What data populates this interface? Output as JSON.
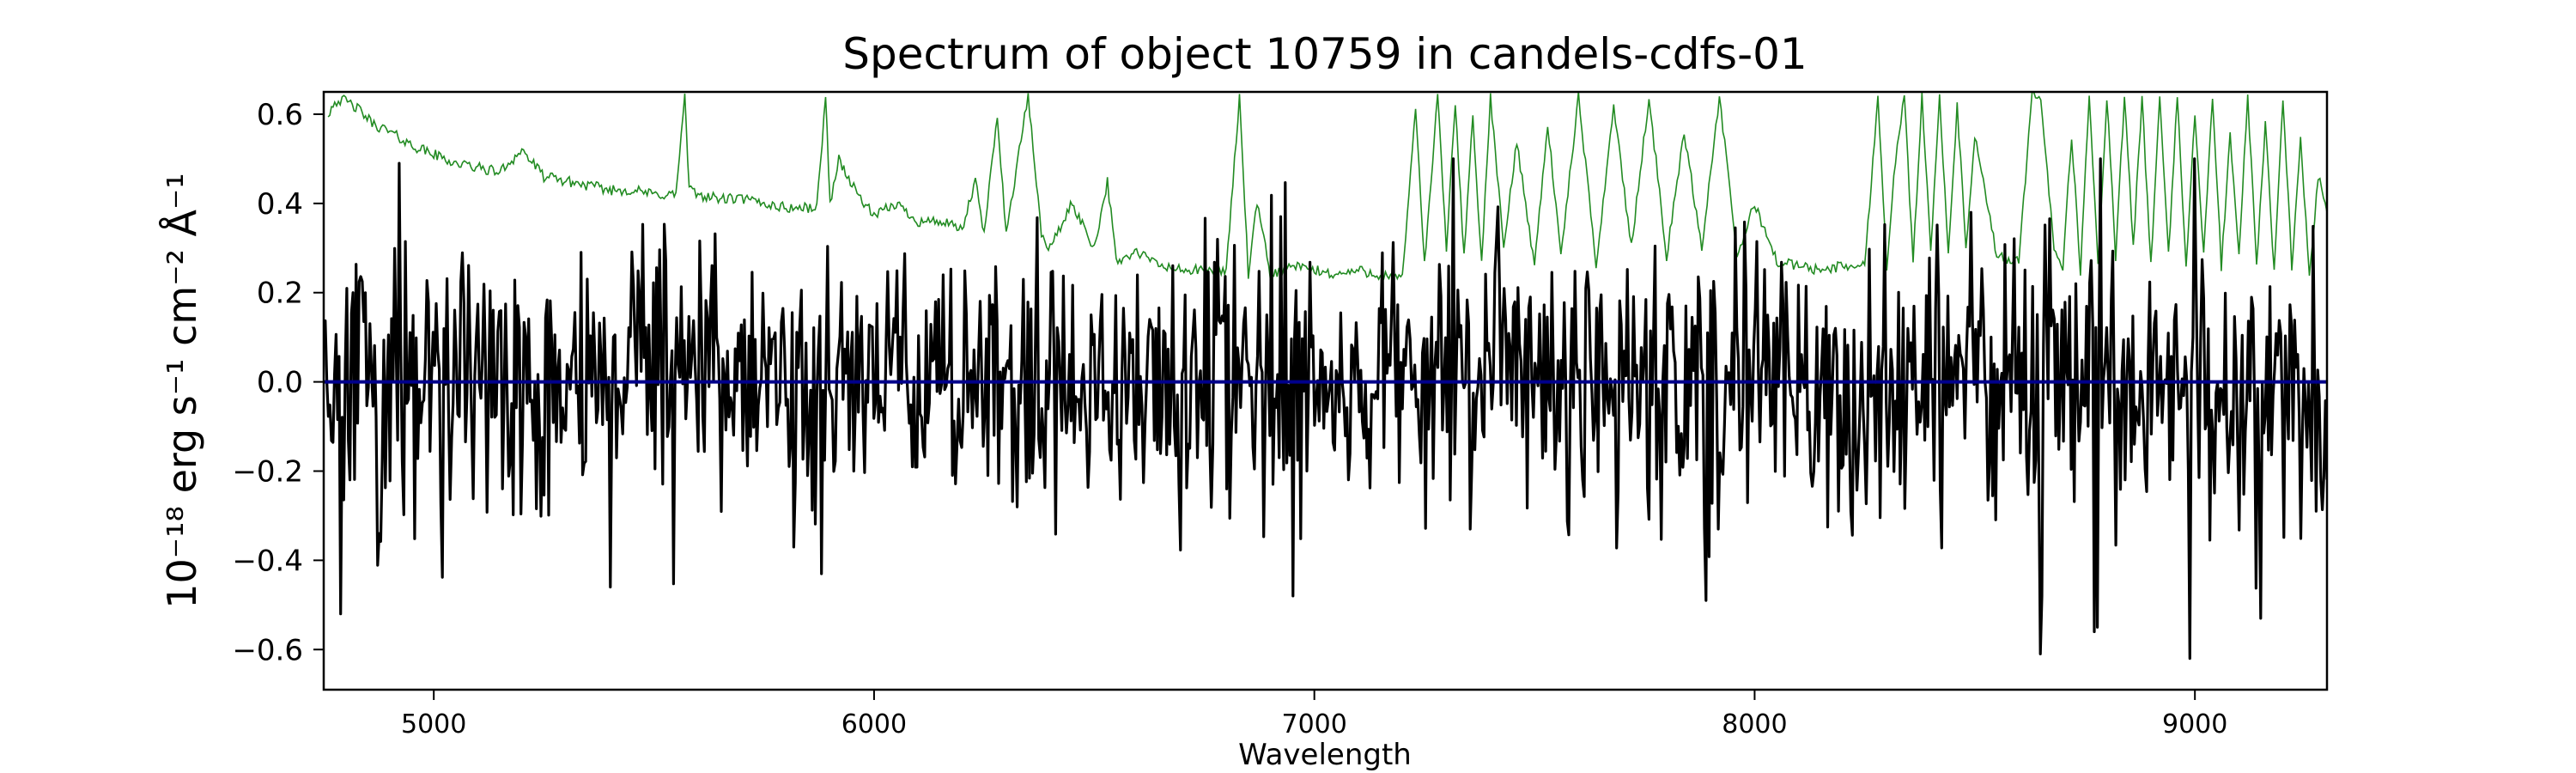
{
  "chart_data": {
    "type": "line",
    "title": "Spectrum of object 10759 in candels-cdfs-01",
    "xlabel": "Wavelength",
    "ylabel": "10⁻¹⁸ erg s⁻¹ cm⁻² Å⁻¹",
    "xlim": [
      4750,
      9300
    ],
    "ylim": [
      -0.69,
      0.65
    ],
    "xticks": [
      5000,
      6000,
      7000,
      8000,
      9000
    ],
    "yticks": [
      -0.6,
      -0.4,
      -0.2,
      0.0,
      0.2,
      0.4,
      0.6
    ],
    "ytick_labels": [
      "−0.6",
      "−0.4",
      "−0.2",
      "0.0",
      "0.2",
      "0.4",
      "0.6"
    ],
    "grid": false,
    "colors": {
      "flux": "#000000",
      "error": "#228b22",
      "zero": "#00008b"
    },
    "series": [
      {
        "key": "error",
        "x": [
          4760,
          4775,
          4800,
          4830,
          4860,
          4900,
          4950,
          5000,
          5050,
          5100,
          5150,
          5200,
          5250,
          5300,
          5350,
          5400,
          5450,
          5500,
          5550,
          5570,
          5580,
          5600,
          5650,
          5700,
          5750,
          5800,
          5870,
          5890,
          5900,
          5920,
          5950,
          6000,
          6050,
          6100,
          6150,
          6200,
          6230,
          6250,
          6280,
          6300,
          6330,
          6350,
          6380,
          6400,
          6450,
          6500,
          6530,
          6550,
          6600,
          6650,
          6700,
          6750,
          6800,
          6830,
          6850,
          6870,
          6900,
          6950,
          7000,
          7050,
          7100,
          7150,
          7200,
          7230,
          7250,
          7280,
          7300,
          7320,
          7340,
          7360,
          7380,
          7400,
          7430,
          7460,
          7500,
          7530,
          7560,
          7600,
          7640,
          7680,
          7720,
          7760,
          7800,
          7840,
          7880,
          7920,
          7960,
          8000,
          8050,
          8100,
          8150,
          8200,
          8250,
          8280,
          8300,
          8320,
          8340,
          8360,
          8380,
          8400,
          8420,
          8440,
          8460,
          8480,
          8500,
          8550,
          8600,
          8630,
          8650,
          8680,
          8700,
          8720,
          8740,
          8760,
          8780,
          8800,
          8820,
          8840,
          8860,
          8880,
          8900,
          8920,
          8940,
          8960,
          8980,
          9000,
          9020,
          9040,
          9060,
          9080,
          9100,
          9120,
          9140,
          9160,
          9180,
          9200,
          9220,
          9240,
          9260,
          9280,
          9300
        ],
        "values": [
          0.6,
          0.63,
          0.63,
          0.61,
          0.58,
          0.56,
          0.53,
          0.51,
          0.49,
          0.48,
          0.47,
          0.52,
          0.46,
          0.45,
          0.44,
          0.43,
          0.43,
          0.42,
          0.42,
          0.64,
          0.43,
          0.42,
          0.41,
          0.41,
          0.4,
          0.39,
          0.39,
          0.64,
          0.4,
          0.5,
          0.44,
          0.37,
          0.4,
          0.36,
          0.36,
          0.34,
          0.45,
          0.33,
          0.6,
          0.33,
          0.52,
          0.64,
          0.33,
          0.3,
          0.4,
          0.3,
          0.45,
          0.27,
          0.29,
          0.26,
          0.25,
          0.25,
          0.25,
          0.64,
          0.24,
          0.4,
          0.24,
          0.26,
          0.25,
          0.24,
          0.25,
          0.24,
          0.23,
          0.62,
          0.26,
          0.64,
          0.3,
          0.62,
          0.28,
          0.6,
          0.26,
          0.64,
          0.3,
          0.54,
          0.26,
          0.58,
          0.28,
          0.64,
          0.26,
          0.62,
          0.3,
          0.64,
          0.28,
          0.56,
          0.3,
          0.64,
          0.28,
          0.4,
          0.27,
          0.26,
          0.25,
          0.26,
          0.26,
          0.64,
          0.26,
          0.5,
          0.64,
          0.27,
          0.64,
          0.3,
          0.64,
          0.28,
          0.62,
          0.3,
          0.55,
          0.28,
          0.27,
          0.64,
          0.64,
          0.3,
          0.26,
          0.55,
          0.25,
          0.64,
          0.26,
          0.64,
          0.28,
          0.64,
          0.3,
          0.64,
          0.26,
          0.64,
          0.28,
          0.64,
          0.26,
          0.6,
          0.28,
          0.64,
          0.26,
          0.55,
          0.28,
          0.64,
          0.26,
          0.58,
          0.25,
          0.64,
          0.26,
          0.54,
          0.24,
          0.46,
          0.38
        ],
        "noise": 0.012
      },
      {
        "key": "flux",
        "x_start": 4750,
        "x_end": 9300,
        "step": 3.5,
        "sigma": 0.15,
        "seed": 10759,
        "features": [
          {
            "x": 4790,
            "value": -0.52
          },
          {
            "x": 4920,
            "value": 0.49
          },
          {
            "x": 5400,
            "value": -0.46
          },
          {
            "x": 5880,
            "value": -0.43
          },
          {
            "x": 7890,
            "value": -0.49
          },
          {
            "x": 8490,
            "value": 0.38
          },
          {
            "x": 8650,
            "value": -0.61
          },
          {
            "x": 8770,
            "value": -0.56
          },
          {
            "x": 8780,
            "value": -0.55
          },
          {
            "x": 8990,
            "value": -0.62
          },
          {
            "x": 9150,
            "value": -0.53
          }
        ]
      },
      {
        "key": "zero",
        "x": [
          4750,
          9300
        ],
        "values": [
          0.0,
          0.0
        ]
      }
    ]
  }
}
